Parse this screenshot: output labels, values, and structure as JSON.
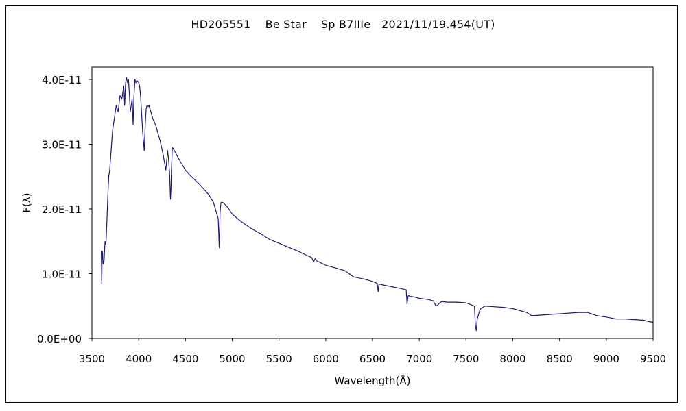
{
  "chart_data": {
    "type": "line",
    "title": "HD205551    Be Star    Sp B7IIIe   2021/11/19.454(UT)",
    "xlabel": "Wavelength(Å)",
    "ylabel": "F(λ)",
    "xlim": [
      3500,
      9500
    ],
    "ylim": [
      0,
      4e-11
    ],
    "xticks": [
      3500,
      4000,
      4500,
      5000,
      5500,
      6000,
      6500,
      7000,
      7500,
      8000,
      8500,
      9000,
      9500
    ],
    "xtick_labels": [
      "3500",
      "4000",
      "4500",
      "5000",
      "5500",
      "6000",
      "6500",
      "7000",
      "7500",
      "8000",
      "8500",
      "9000",
      "9500"
    ],
    "yticks": [
      0,
      1e-11,
      2e-11,
      3e-11,
      4e-11
    ],
    "ytick_labels": [
      "0.0E+00",
      "1.0E-11",
      "2.0E-11",
      "3.0E-11",
      "4.0E-11"
    ],
    "grid": false,
    "legend": "none",
    "line_color": "#1a1a6e",
    "series": [
      {
        "x": [
          3600,
          3605,
          3610,
          3615,
          3620,
          3630,
          3640,
          3650,
          3660,
          3670,
          3680,
          3690,
          3700,
          3720,
          3740,
          3760,
          3780,
          3800,
          3820,
          3840,
          3850,
          3860,
          3870,
          3880,
          3890,
          3900,
          3910,
          3920,
          3930,
          3940,
          3950,
          3960,
          3970,
          3980,
          3990,
          4000,
          4010,
          4020,
          4030,
          4040,
          4050,
          4060,
          4070,
          4080,
          4090,
          4101,
          4110,
          4120,
          4130,
          4150,
          4180,
          4200,
          4230,
          4260,
          4290,
          4310,
          4320,
          4330,
          4340,
          4345,
          4350,
          4360,
          4370,
          4400,
          4450,
          4500,
          4550,
          4600,
          4650,
          4700,
          4750,
          4800,
          4830,
          4850,
          4860,
          4862,
          4865,
          4870,
          4880,
          4900,
          4950,
          5000,
          5100,
          5200,
          5300,
          5400,
          5500,
          5600,
          5700,
          5800,
          5850,
          5870,
          5890,
          5900,
          6000,
          6200,
          6300,
          6400,
          6500,
          6550,
          6560,
          6565,
          6570,
          6600,
          6700,
          6800,
          6860,
          6870,
          6880,
          6885,
          6890,
          6900,
          6950,
          7000,
          7100,
          7150,
          7180,
          7200,
          7220,
          7240,
          7300,
          7400,
          7500,
          7590,
          7600,
          7610,
          7620,
          7650,
          7700,
          7800,
          7900,
          8000,
          8100,
          8150,
          8200,
          8300,
          8400,
          8500,
          8600,
          8700,
          8800,
          8900,
          9000,
          9100,
          9200,
          9300,
          9400,
          9450,
          9500
        ],
        "y": [
          1.35e-11,
          8.5e-12,
          1.35e-11,
          1.3e-11,
          1.15e-11,
          1.2e-11,
          1.5e-11,
          1.45e-11,
          1.8e-11,
          2.2e-11,
          2.5e-11,
          2.6e-11,
          2.8e-11,
          3.2e-11,
          3.4e-11,
          3.6e-11,
          3.5e-11,
          3.75e-11,
          3.7e-11,
          3.9e-11,
          3.6e-11,
          3.95e-11,
          4.03e-11,
          3.95e-11,
          4e-11,
          3.8e-11,
          3.5e-11,
          3.6e-11,
          3.7e-11,
          3.3e-11,
          3.75e-11,
          4e-11,
          3.95e-11,
          3.98e-11,
          3.97e-11,
          3.95e-11,
          3.9e-11,
          3.75e-11,
          3.5e-11,
          3.25e-11,
          3.05e-11,
          2.9e-11,
          3.3e-11,
          3.55e-11,
          3.6e-11,
          3.58e-11,
          3.6e-11,
          3.55e-11,
          3.5e-11,
          3.4e-11,
          3.3e-11,
          3.2e-11,
          3.05e-11,
          2.85e-11,
          2.6e-11,
          2.9e-11,
          2.75e-11,
          2.55e-11,
          2.15e-11,
          2.3e-11,
          2.6e-11,
          2.95e-11,
          2.93e-11,
          2.85e-11,
          2.72e-11,
          2.6e-11,
          2.52e-11,
          2.45e-11,
          2.38e-11,
          2.3e-11,
          2.22e-11,
          2.1e-11,
          1.95e-11,
          1.85e-11,
          1.45e-11,
          1.4e-11,
          1.6e-11,
          1.95e-11,
          2.1e-11,
          2.1e-11,
          2.03e-11,
          1.92e-11,
          1.8e-11,
          1.7e-11,
          1.62e-11,
          1.53e-11,
          1.47e-11,
          1.41e-11,
          1.35e-11,
          1.28e-11,
          1.25e-11,
          1.18e-11,
          1.24e-11,
          1.2e-11,
          1.13e-11,
          1.05e-11,
          9.5e-12,
          9.2e-12,
          8.8e-12,
          8.5e-12,
          7.2e-12,
          8e-12,
          8.4e-12,
          8.3e-12,
          8e-12,
          7.7e-12,
          7.5e-12,
          5.3e-12,
          6.5e-12,
          6.6e-12,
          6.6e-12,
          6.5e-12,
          6.4e-12,
          6.2e-12,
          6e-12,
          5.8e-12,
          5e-12,
          5.2e-12,
          5.5e-12,
          5.7e-12,
          5.6e-12,
          5.6e-12,
          5.5e-12,
          5e-12,
          2e-12,
          1.2e-12,
          3e-12,
          4.5e-12,
          5e-12,
          4.9e-12,
          4.8e-12,
          4.6e-12,
          4.2e-12,
          4e-12,
          3.5e-12,
          3.6e-12,
          3.7e-12,
          3.8e-12,
          3.9e-12,
          4e-12,
          4e-12,
          3.5e-12,
          3.3e-12,
          3e-12,
          3e-12,
          2.9e-12,
          2.8e-12,
          2.6e-12,
          2.5e-12
        ]
      }
    ]
  }
}
